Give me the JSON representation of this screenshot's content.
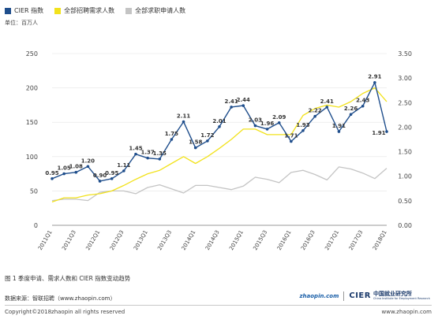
{
  "legend": [
    {
      "label": "CIER 指数",
      "color": "#1f4e8c"
    },
    {
      "label": "全部招聘需求人数",
      "color": "#f2e21c"
    },
    {
      "label": "全部求职申请人数",
      "color": "#c4c4c4"
    }
  ],
  "unit_label": "单位：百万人",
  "caption": "图 1 季度申请、需求人数和 CIER 指数变动趋势",
  "source": "数据来源：智联招聘（www.zhaopin.com）",
  "copyright": "Copyright©2018zhaopin all rights reserved",
  "website": "www.zhaopin.com",
  "logos": {
    "zhaopin": "zhaopin.com",
    "cier_mark": "CIER",
    "cier_cn": "中国就业研究所",
    "cier_en": "China Institute for Employment Research"
  },
  "chart_data": {
    "type": "line",
    "categories": [
      "2011Q1",
      "2011Q2",
      "2011Q3",
      "2011Q4",
      "2012Q1",
      "2012Q2",
      "2012Q3",
      "2012Q4",
      "2013Q1",
      "2013Q2",
      "2013Q3",
      "2013Q4",
      "2014Q1",
      "2014Q2",
      "2014Q3",
      "2014Q4",
      "2015Q1",
      "2015Q2",
      "2015Q3",
      "2015Q4",
      "2016Q1",
      "2016Q2",
      "2016Q3",
      "2016Q4",
      "2017Q1",
      "2017Q2",
      "2017Q3",
      "2017Q4",
      "2018Q1"
    ],
    "tick_labels": [
      "2011Q1",
      "",
      "2011Q3",
      "",
      "2012Q1",
      "",
      "2012Q3",
      "",
      "2013Q1",
      "",
      "2013Q3",
      "",
      "2014Q1",
      "",
      "2014Q3",
      "",
      "2015Q1",
      "",
      "2015Q3",
      "",
      "2016Q1",
      "",
      "2016Q3",
      "",
      "2017Q1",
      "",
      "2017Q3",
      "",
      "2018Q1"
    ],
    "left_ticks": [
      "0",
      "50",
      "100",
      "150",
      "200",
      "250"
    ],
    "right_ticks": [
      "0.00",
      "0.50",
      "1.00",
      "1.50",
      "2.00",
      "2.50",
      "3.00",
      "3.50"
    ],
    "ylim_left": [
      0,
      250
    ],
    "ylim_right": [
      0,
      3.5
    ],
    "series": [
      {
        "name": "CIER 指数",
        "axis": "right",
        "color": "#1f4e8c",
        "values": [
          0.95,
          1.05,
          1.08,
          1.2,
          0.9,
          0.95,
          1.11,
          1.45,
          1.37,
          1.35,
          1.75,
          2.11,
          1.58,
          1.72,
          2.01,
          2.41,
          2.44,
          2.03,
          1.96,
          2.09,
          1.71,
          1.93,
          2.22,
          2.41,
          1.91,
          2.26,
          2.43,
          2.91,
          1.91
        ],
        "labels": [
          "0.95",
          "1.05",
          "1.08",
          "1.20",
          "0.90",
          "0.95",
          "1.11",
          "1.45",
          "1.37",
          "1.35",
          "1.75",
          "2.11",
          "1.58",
          "1.72",
          "2.01",
          "2.41",
          "2.44",
          "2.03",
          "1.96",
          "2.09",
          "1.71",
          "1.93",
          "2.22",
          "2.41",
          "1.91",
          "2.26",
          "2.43",
          "2.91",
          "1.91"
        ]
      },
      {
        "name": "全部招聘需求人数",
        "axis": "left",
        "color": "#f2e21c",
        "values": [
          34,
          40,
          40,
          44,
          46,
          50,
          58,
          67,
          75,
          80,
          90,
          100,
          90,
          100,
          112,
          125,
          140,
          140,
          132,
          132,
          132,
          160,
          170,
          175,
          172,
          180,
          192,
          200,
          180
        ]
      },
      {
        "name": "全部求职申请人数",
        "axis": "left",
        "color": "#c4c4c4",
        "values": [
          36,
          38,
          38,
          36,
          48,
          50,
          50,
          46,
          55,
          59,
          53,
          47,
          58,
          58,
          55,
          52,
          57,
          70,
          67,
          62,
          77,
          80,
          74,
          66,
          85,
          82,
          76,
          68,
          83
        ]
      }
    ]
  }
}
